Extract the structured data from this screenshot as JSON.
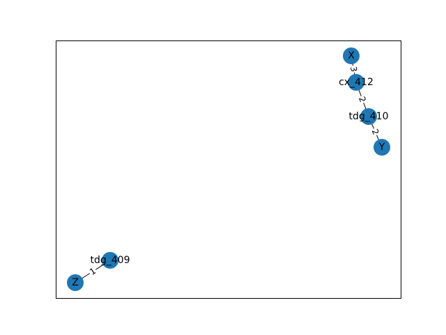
{
  "graph": {
    "nodes": [
      {
        "id": "X",
        "label": "X"
      },
      {
        "id": "cx_412",
        "label": "cx_412"
      },
      {
        "id": "tdg_410",
        "label": "tdg_410"
      },
      {
        "id": "Y",
        "label": "Y"
      },
      {
        "id": "tdg_409",
        "label": "tdg_409"
      },
      {
        "id": "Z",
        "label": "Z"
      }
    ],
    "edges": [
      {
        "from": "X",
        "to": "cx_412",
        "label": "3"
      },
      {
        "from": "cx_412",
        "to": "tdg_410",
        "label": "2"
      },
      {
        "from": "tdg_410",
        "to": "Y",
        "label": "2"
      },
      {
        "from": "Z",
        "to": "tdg_409",
        "label": "1"
      }
    ],
    "colors": {
      "node": "#1f77b4",
      "edge": "#000000",
      "frame": "#000000"
    }
  }
}
